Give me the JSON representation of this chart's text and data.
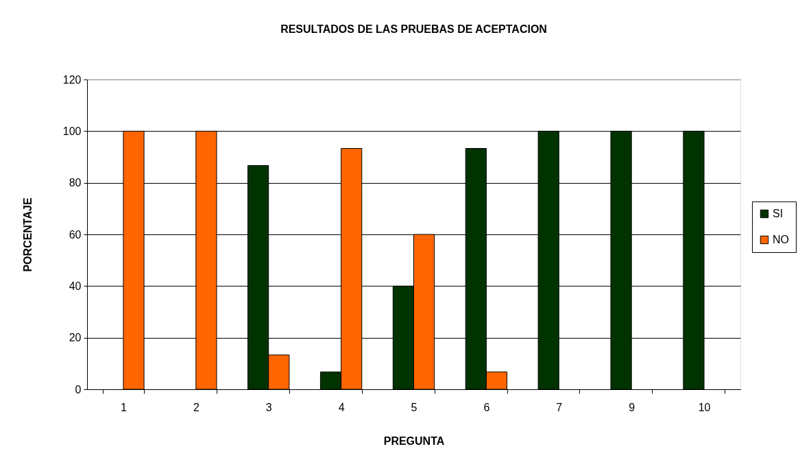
{
  "chart_data": {
    "type": "bar",
    "title": "RESULTADOS DE LAS PRUEBAS DE ACEPTACION",
    "xlabel": "PREGUNTA",
    "ylabel": "PORCENTAJE",
    "categories": [
      "1",
      "2",
      "3",
      "4",
      "5",
      "6",
      "7",
      "9",
      "10"
    ],
    "series": [
      {
        "name": "SI",
        "color": "#003300",
        "values": [
          null,
          null,
          86.7,
          6.7,
          40,
          93.3,
          100,
          100,
          100
        ]
      },
      {
        "name": "NO",
        "color": "#ff6600",
        "values": [
          100,
          100,
          13.3,
          93.3,
          60,
          6.7,
          null,
          null,
          null
        ]
      }
    ],
    "ylim": [
      0,
      120
    ],
    "yticks": [
      0,
      20,
      40,
      60,
      80,
      100,
      120
    ],
    "grid": "y",
    "legend": "right"
  }
}
